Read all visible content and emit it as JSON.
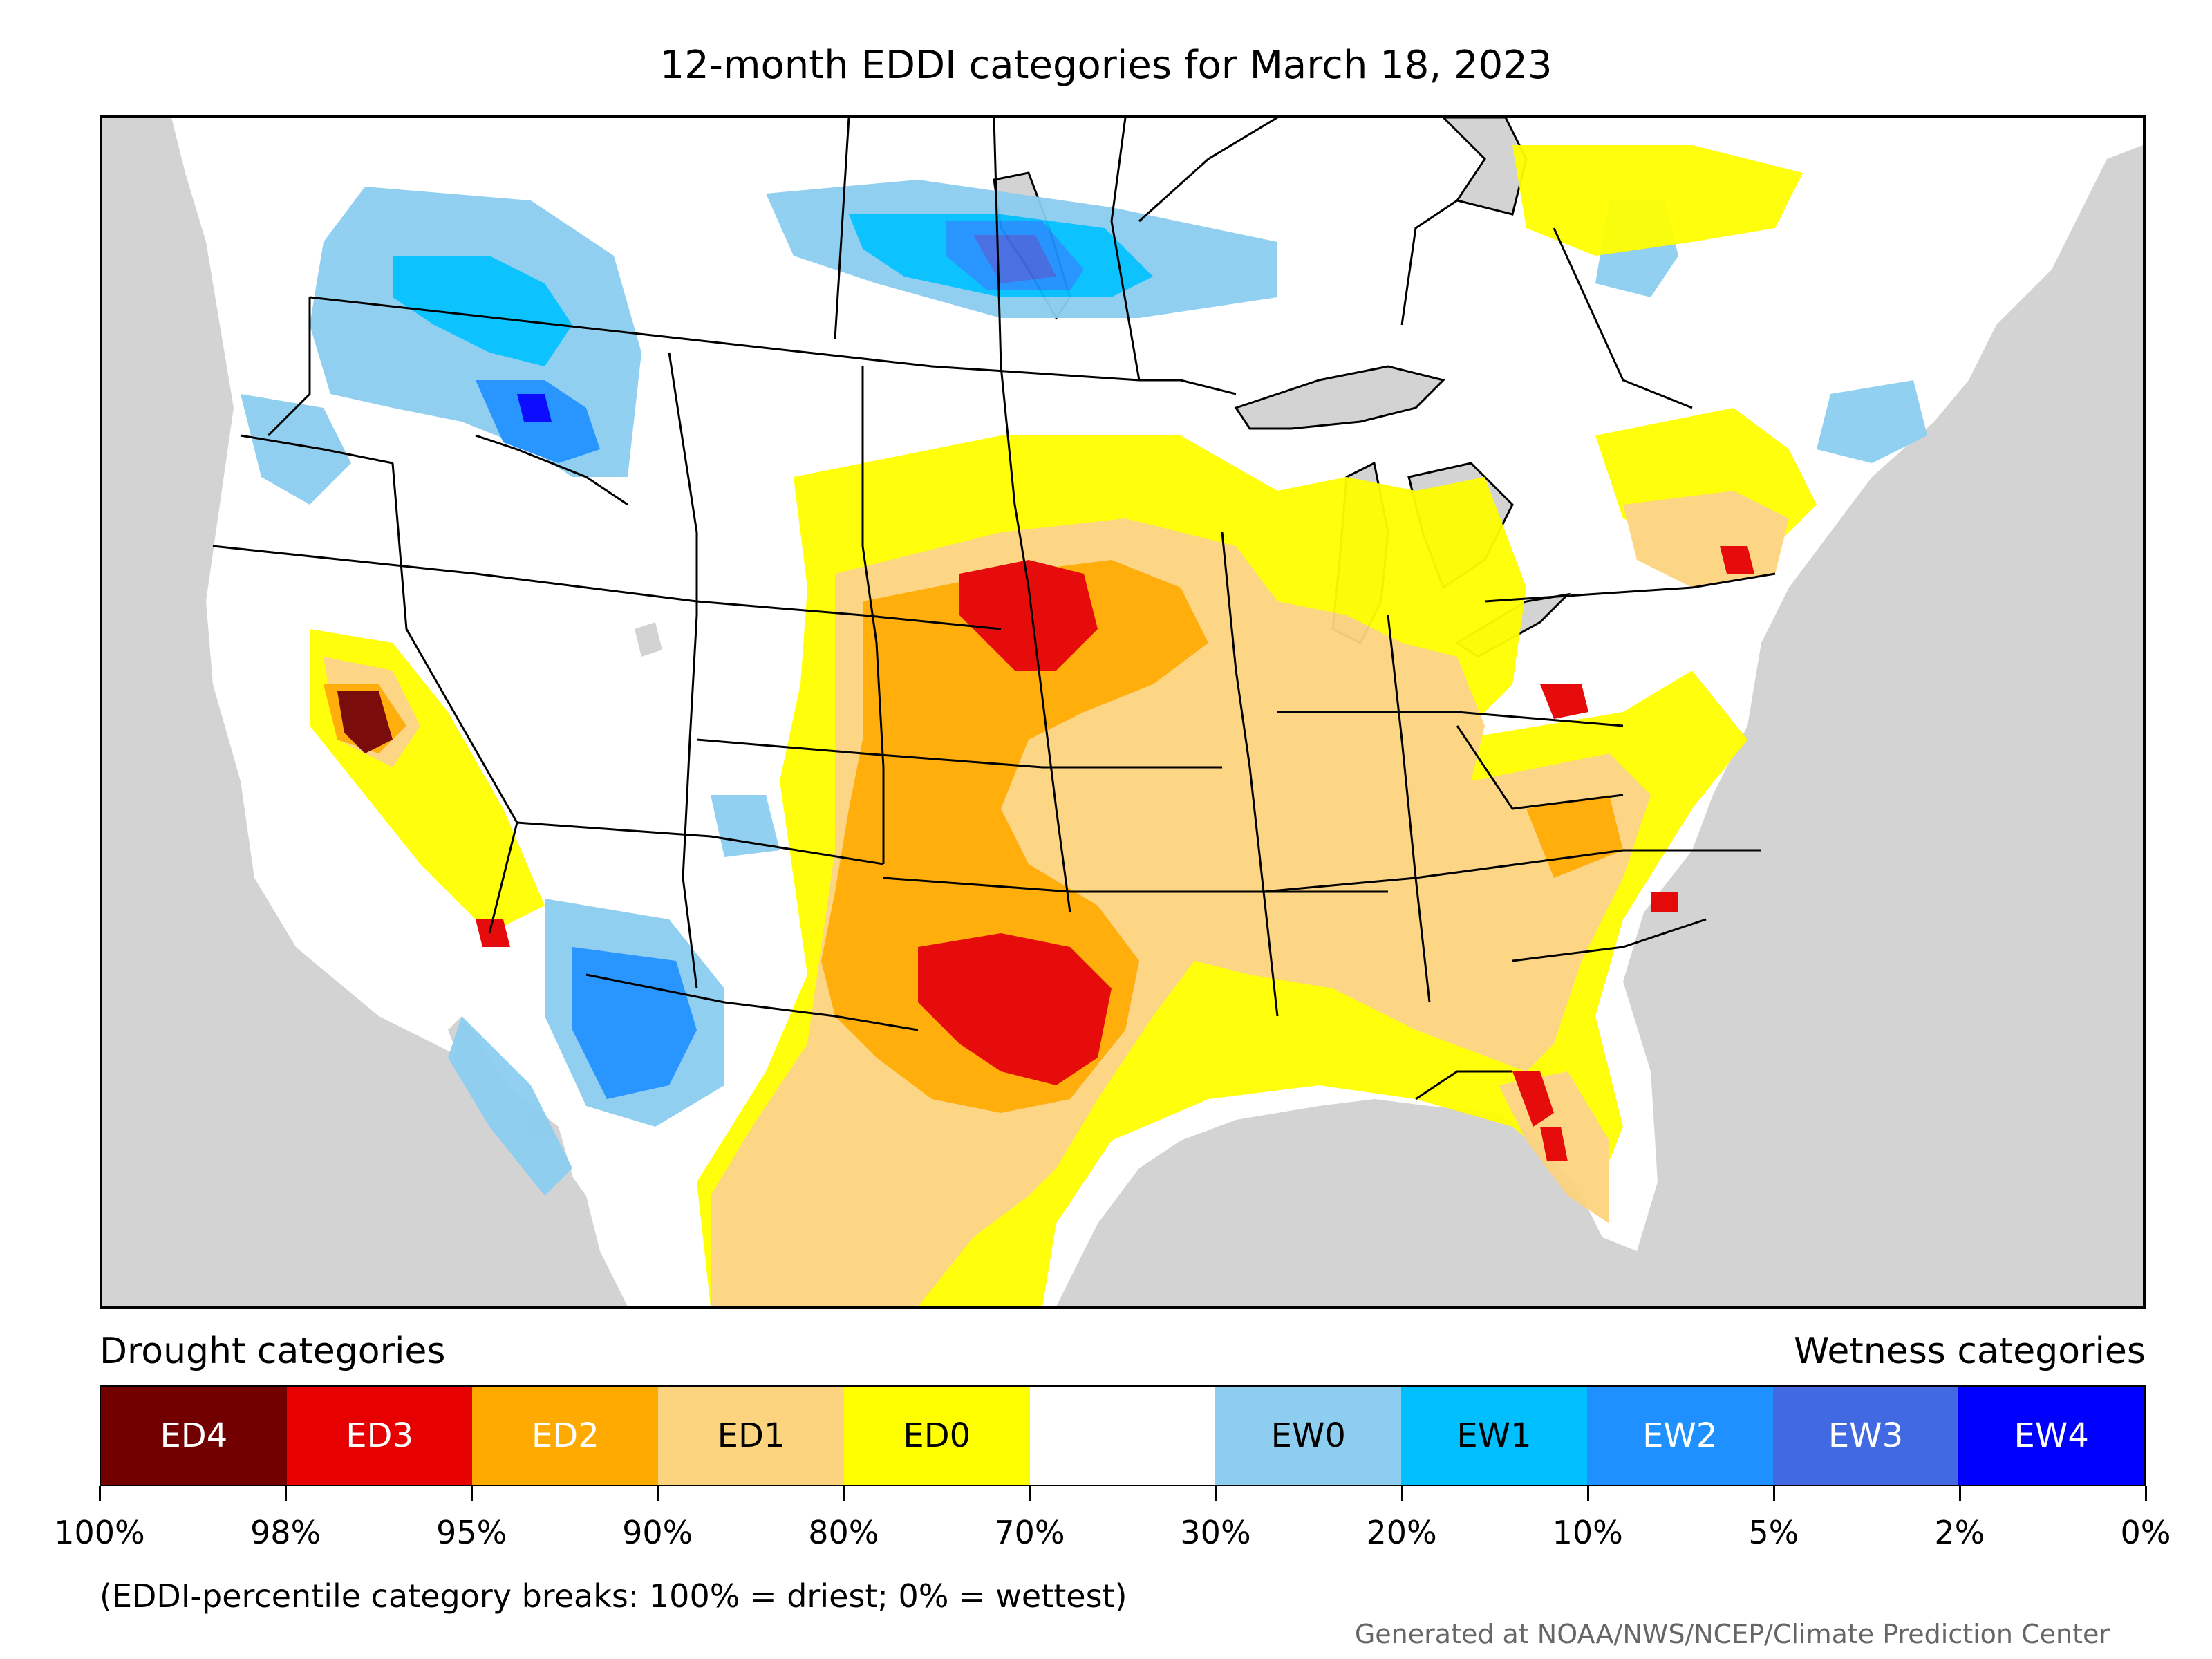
{
  "title": "12-month EDDI categories for March 18, 2023",
  "legend": {
    "left_label": "Drought categories",
    "right_label": "Wetness categories",
    "categories": [
      {
        "label": "ED4",
        "color": "#730000",
        "text_color": "#ffffff"
      },
      {
        "label": "ED3",
        "color": "#e60000",
        "text_color": "#ffffff"
      },
      {
        "label": "ED2",
        "color": "#ffaa00",
        "text_color": "#ffffff"
      },
      {
        "label": "ED1",
        "color": "#fcd37f",
        "text_color": "#000000"
      },
      {
        "label": "ED0",
        "color": "#ffff00",
        "text_color": "#000000"
      },
      {
        "label": "",
        "color": "#ffffff",
        "text_color": "#000000"
      },
      {
        "label": "EW0",
        "color": "#8ccdf0",
        "text_color": "#000000"
      },
      {
        "label": "EW1",
        "color": "#00bfff",
        "text_color": "#000000"
      },
      {
        "label": "EW2",
        "color": "#1e90ff",
        "text_color": "#ffffff"
      },
      {
        "label": "EW3",
        "color": "#4169e1",
        "text_color": "#ffffff"
      },
      {
        "label": "EW4",
        "color": "#0000ff",
        "text_color": "#ffffff"
      }
    ],
    "ticks": [
      "100%",
      "98%",
      "95%",
      "90%",
      "80%",
      "70%",
      "30%",
      "20%",
      "10%",
      "5%",
      "2%",
      "0%"
    ]
  },
  "note": "(EDDI-percentile category breaks: 100% = driest; 0% = wettest)",
  "credit": "Generated at NOAA/NWS/NCEP/Climate Prediction Center",
  "map": {
    "region": "Contiguous United States",
    "ocean_color": "#d3d3d3",
    "land_color": "#ffffff"
  }
}
